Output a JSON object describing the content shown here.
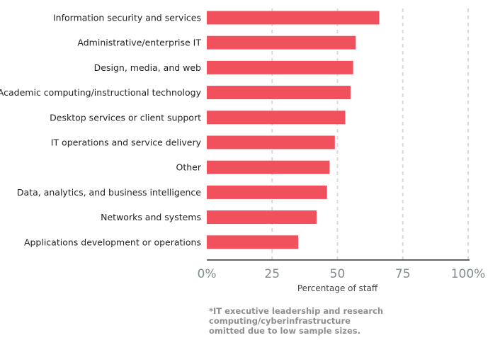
{
  "chart_data": {
    "type": "bar",
    "orientation": "horizontal",
    "categories": [
      "Information security and services",
      "Administrative/enterprise IT",
      "Design, media, and web",
      "Academic computing/instructional technology",
      "Desktop services or client support",
      "IT operations and service delivery",
      "Other",
      "Data, analytics, and business intelligence",
      "Networks and systems",
      "Applications development or operations"
    ],
    "values": [
      66,
      57,
      56,
      55,
      53,
      49,
      47,
      46,
      42,
      35
    ],
    "xlabel": "Percentage of staff",
    "ylabel": "",
    "xlim": [
      0,
      100
    ],
    "x_ticks": [
      0,
      25,
      50,
      75,
      100
    ],
    "x_tick_labels": [
      "0%",
      "25",
      "50",
      "75",
      "100%"
    ],
    "grid": "vertical dashed",
    "bar_color": "#f0515c",
    "gridline_color": "#d9d9d9",
    "axis_color": "#333333",
    "tick_label_color": "#7f8c8f",
    "category_label_color": "#222222"
  },
  "footnote": "*IT executive leadership and research computing/cyberinfrastructure omitted due to low sample sizes."
}
